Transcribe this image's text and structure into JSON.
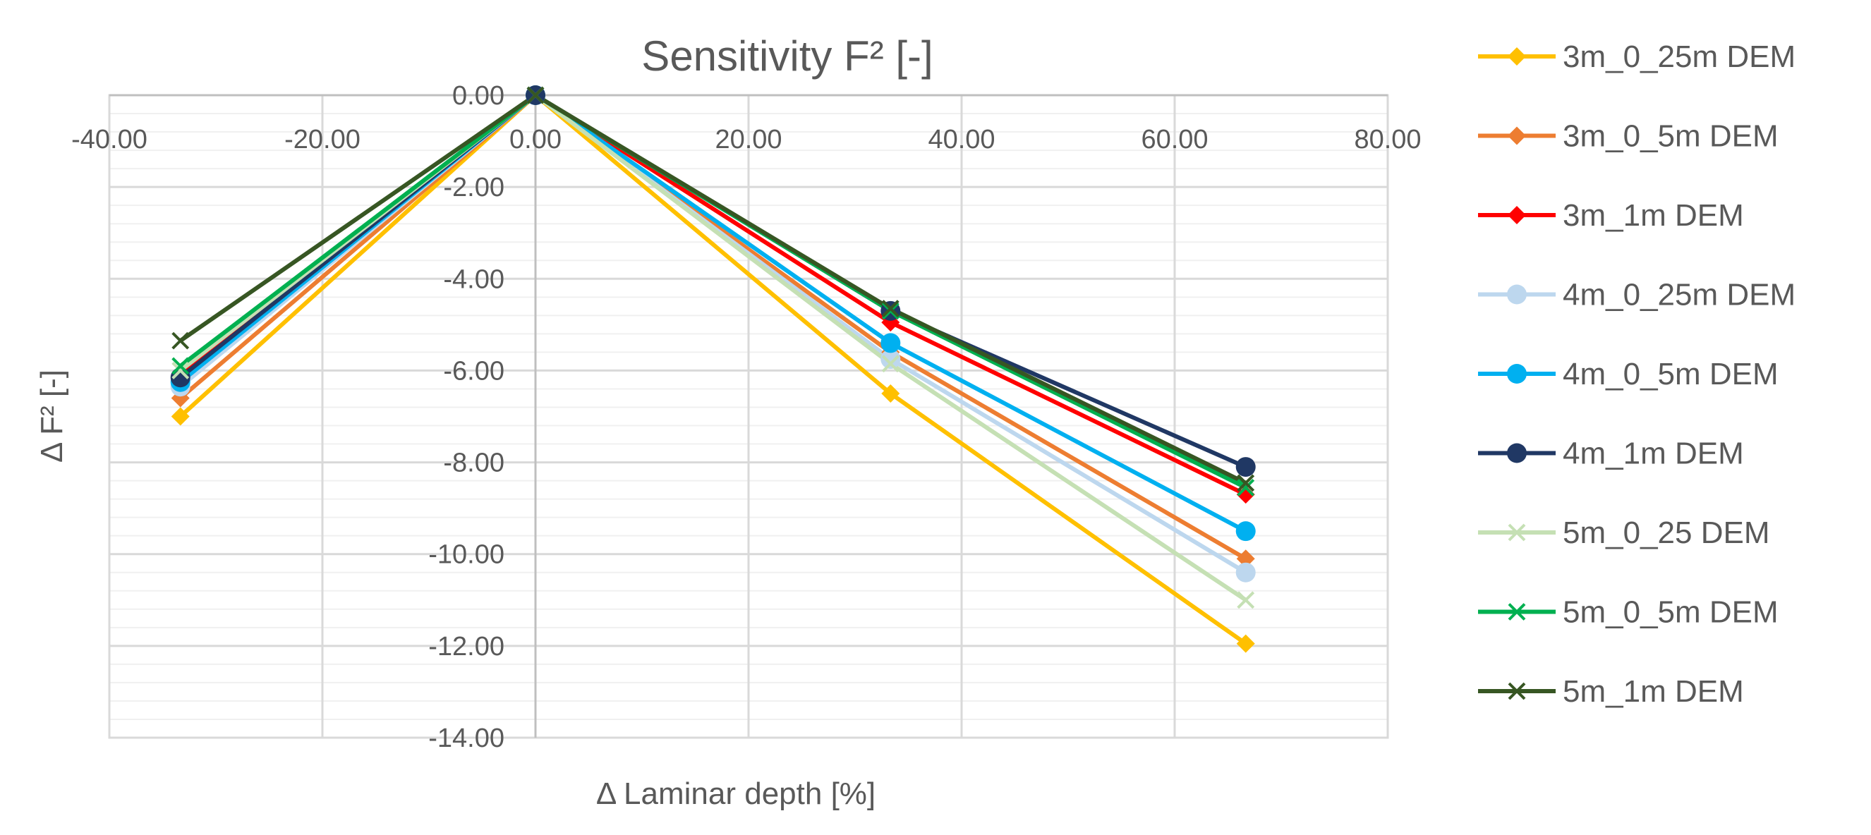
{
  "chart_data": {
    "type": "line",
    "title": "Sensitivity F² [-]",
    "xlabel": "Δ Laminar depth [%]",
    "ylabel": "Δ F² [-]",
    "xlim": [
      -40,
      80
    ],
    "ylim": [
      -14,
      0
    ],
    "x_ticks": [
      "-40.00",
      "-20.00",
      "0.00",
      "20.00",
      "40.00",
      "60.00",
      "80.00"
    ],
    "y_ticks": [
      "0.00",
      "-2.00",
      "-4.00",
      "-6.00",
      "-8.00",
      "-10.00",
      "-12.00",
      "-14.00"
    ],
    "x": [
      -33.33,
      0,
      33.33,
      66.67
    ],
    "grid": "major and minor",
    "legend_position": "right",
    "series": [
      {
        "name": "3m_0_25m DEM",
        "color": "#FFC000",
        "marker": "diamond",
        "values": [
          -7.0,
          0,
          -6.5,
          -11.95
        ]
      },
      {
        "name": "3m_0_5m DEM",
        "color": "#ED7D31",
        "marker": "diamond",
        "values": [
          -6.6,
          0,
          -5.6,
          -10.1
        ]
      },
      {
        "name": "3m_1m DEM",
        "color": "#FF0000",
        "marker": "diamond",
        "values": [
          -6.1,
          0,
          -4.95,
          -8.7
        ]
      },
      {
        "name": "4m_0_25m DEM",
        "color": "#BDD7EE",
        "marker": "circle",
        "values": [
          -6.35,
          0,
          -5.75,
          -10.4
        ]
      },
      {
        "name": "4m_0_5m DEM",
        "color": "#00B0F0",
        "marker": "circle",
        "values": [
          -6.25,
          0,
          -5.4,
          -9.5
        ]
      },
      {
        "name": "4m_1m DEM",
        "color": "#203864",
        "marker": "circle",
        "values": [
          -6.15,
          0,
          -4.7,
          -8.1
        ]
      },
      {
        "name": "5m_0_25 DEM",
        "color": "#C5E0B4",
        "marker": "x",
        "values": [
          -6.0,
          0,
          -5.85,
          -11.0
        ]
      },
      {
        "name": "5m_0_5m DEM",
        "color": "#00B050",
        "marker": "x",
        "values": [
          -5.9,
          0,
          -4.7,
          -8.55
        ]
      },
      {
        "name": "5m_1m DEM",
        "color": "#375623",
        "marker": "x",
        "values": [
          -5.35,
          0,
          -4.65,
          -8.45
        ]
      }
    ]
  }
}
